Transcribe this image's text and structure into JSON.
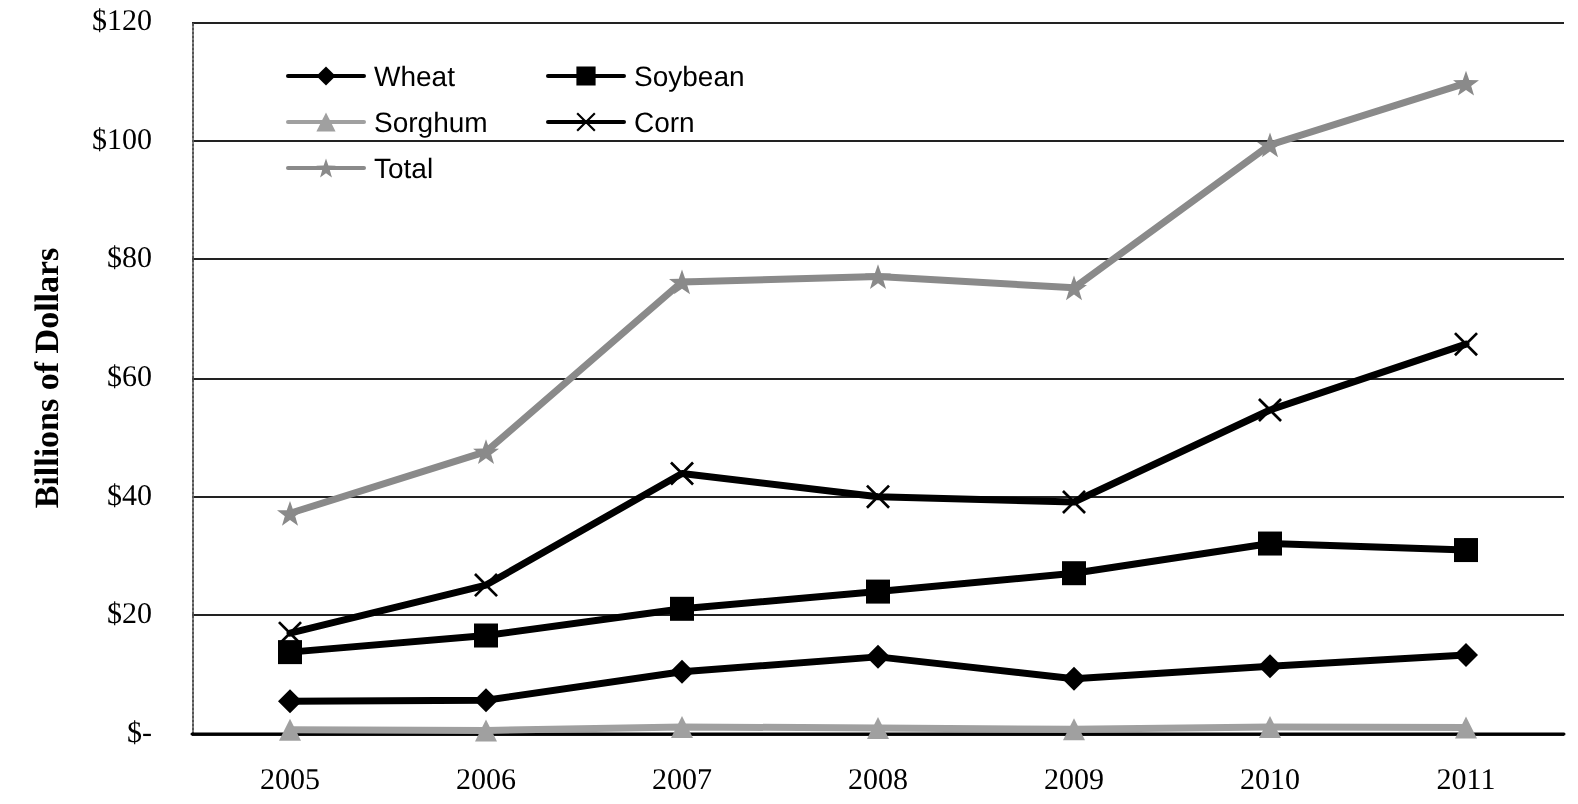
{
  "chart_data": {
    "type": "line",
    "ylabel": "Billions of Dollars",
    "categories": [
      "2005",
      "2006",
      "2007",
      "2008",
      "2009",
      "2010",
      "2011"
    ],
    "series": [
      {
        "name": "Wheat",
        "color": "#000000",
        "marker": "diamond",
        "values": [
          5.5,
          5.7,
          10.5,
          13.0,
          9.3,
          11.4,
          13.3
        ]
      },
      {
        "name": "Soybean",
        "color": "#000000",
        "marker": "square",
        "values": [
          13.8,
          16.6,
          21.1,
          24.0,
          27.1,
          32.1,
          31.0
        ]
      },
      {
        "name": "Sorghum",
        "color": "#a0a0a0",
        "marker": "triangle",
        "values": [
          0.7,
          0.6,
          1.2,
          1.0,
          0.8,
          1.2,
          1.1
        ]
      },
      {
        "name": "Corn",
        "color": "#000000",
        "marker": "cross",
        "values": [
          17.0,
          25.1,
          43.9,
          40.0,
          39.1,
          54.6,
          65.7
        ]
      },
      {
        "name": "Total",
        "color": "#8a8a8a",
        "marker": "star",
        "values": [
          37.2,
          47.6,
          76.2,
          77.1,
          75.2,
          99.3,
          109.7
        ]
      }
    ],
    "ylim": [
      0,
      120
    ],
    "yticks": [
      {
        "value": 0,
        "label": "$-"
      },
      {
        "value": 20,
        "label": "$20"
      },
      {
        "value": 40,
        "label": "$40"
      },
      {
        "value": 60,
        "label": "$60"
      },
      {
        "value": 80,
        "label": "$80"
      },
      {
        "value": 100,
        "label": "$100"
      },
      {
        "value": 120,
        "label": "$120"
      }
    ],
    "grid": "y",
    "legend": "top left"
  }
}
